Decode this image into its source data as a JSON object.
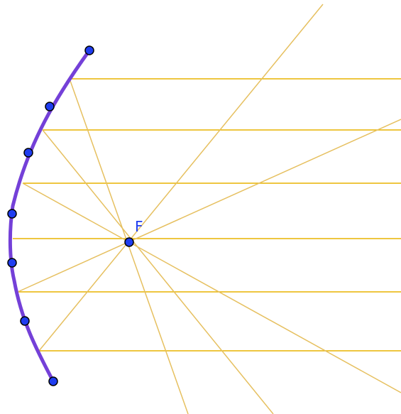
{
  "focus": {
    "label": "F"
  },
  "colors": {
    "parallel_ray": "#e8b400",
    "reflected_ray": "#e6c060",
    "mirror_curve": "#7440d8",
    "point_fill": "#1f3df0",
    "point_stroke": "#000000",
    "label": "#1f3df0"
  }
}
